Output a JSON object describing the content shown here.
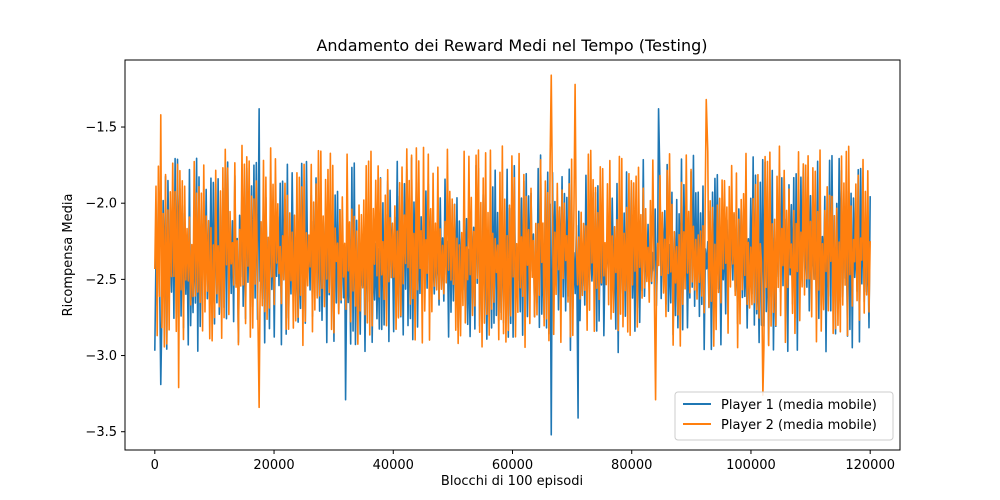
{
  "chart_data": {
    "type": "line",
    "title": "Andamento dei Reward Medi nel Tempo (Testing)",
    "xlabel": "Blocchi di 100 episodi",
    "ylabel": "Ricompensa Media",
    "xlim": [
      -5000,
      125000
    ],
    "ylim": [
      -3.62,
      -1.06
    ],
    "xticks": [
      0,
      20000,
      40000,
      60000,
      80000,
      100000,
      120000
    ],
    "xtick_labels": [
      "0",
      "20000",
      "40000",
      "60000",
      "80000",
      "100000",
      "120000"
    ],
    "yticks": [
      -3.5,
      -3.0,
      -2.5,
      -2.0,
      -1.5
    ],
    "ytick_labels": [
      "−3.5",
      "−3.0",
      "−2.5",
      "−2.0",
      "−1.5"
    ],
    "grid": false,
    "legend_position": "lower-right",
    "n_points": 600,
    "series": [
      {
        "name": "Player 1 (media mobile)",
        "color": "#1f77b4",
        "x_start": 0,
        "x_end": 120000,
        "mean": -2.35,
        "band_low": -2.98,
        "band_high": -1.68,
        "extremes": [
          {
            "x": 66500,
            "y": -3.52
          },
          {
            "x": 71000,
            "y": -3.41
          },
          {
            "x": 32000,
            "y": -3.29
          },
          {
            "x": 17500,
            "y": -1.38
          },
          {
            "x": 84500,
            "y": -1.38
          },
          {
            "x": 1000,
            "y": -3.19
          }
        ]
      },
      {
        "name": "Player 2 (media mobile)",
        "color": "#ff7f0e",
        "x_start": 0,
        "x_end": 120000,
        "mean": -2.3,
        "band_low": -2.95,
        "band_high": -1.62,
        "extremes": [
          {
            "x": 66500,
            "y": -1.16
          },
          {
            "x": 70500,
            "y": -1.22
          },
          {
            "x": 17500,
            "y": -3.34
          },
          {
            "x": 84000,
            "y": -3.29
          },
          {
            "x": 4000,
            "y": -3.21
          },
          {
            "x": 1000,
            "y": -1.42
          },
          {
            "x": 92500,
            "y": -1.32
          },
          {
            "x": 102000,
            "y": -3.26
          }
        ]
      }
    ]
  }
}
